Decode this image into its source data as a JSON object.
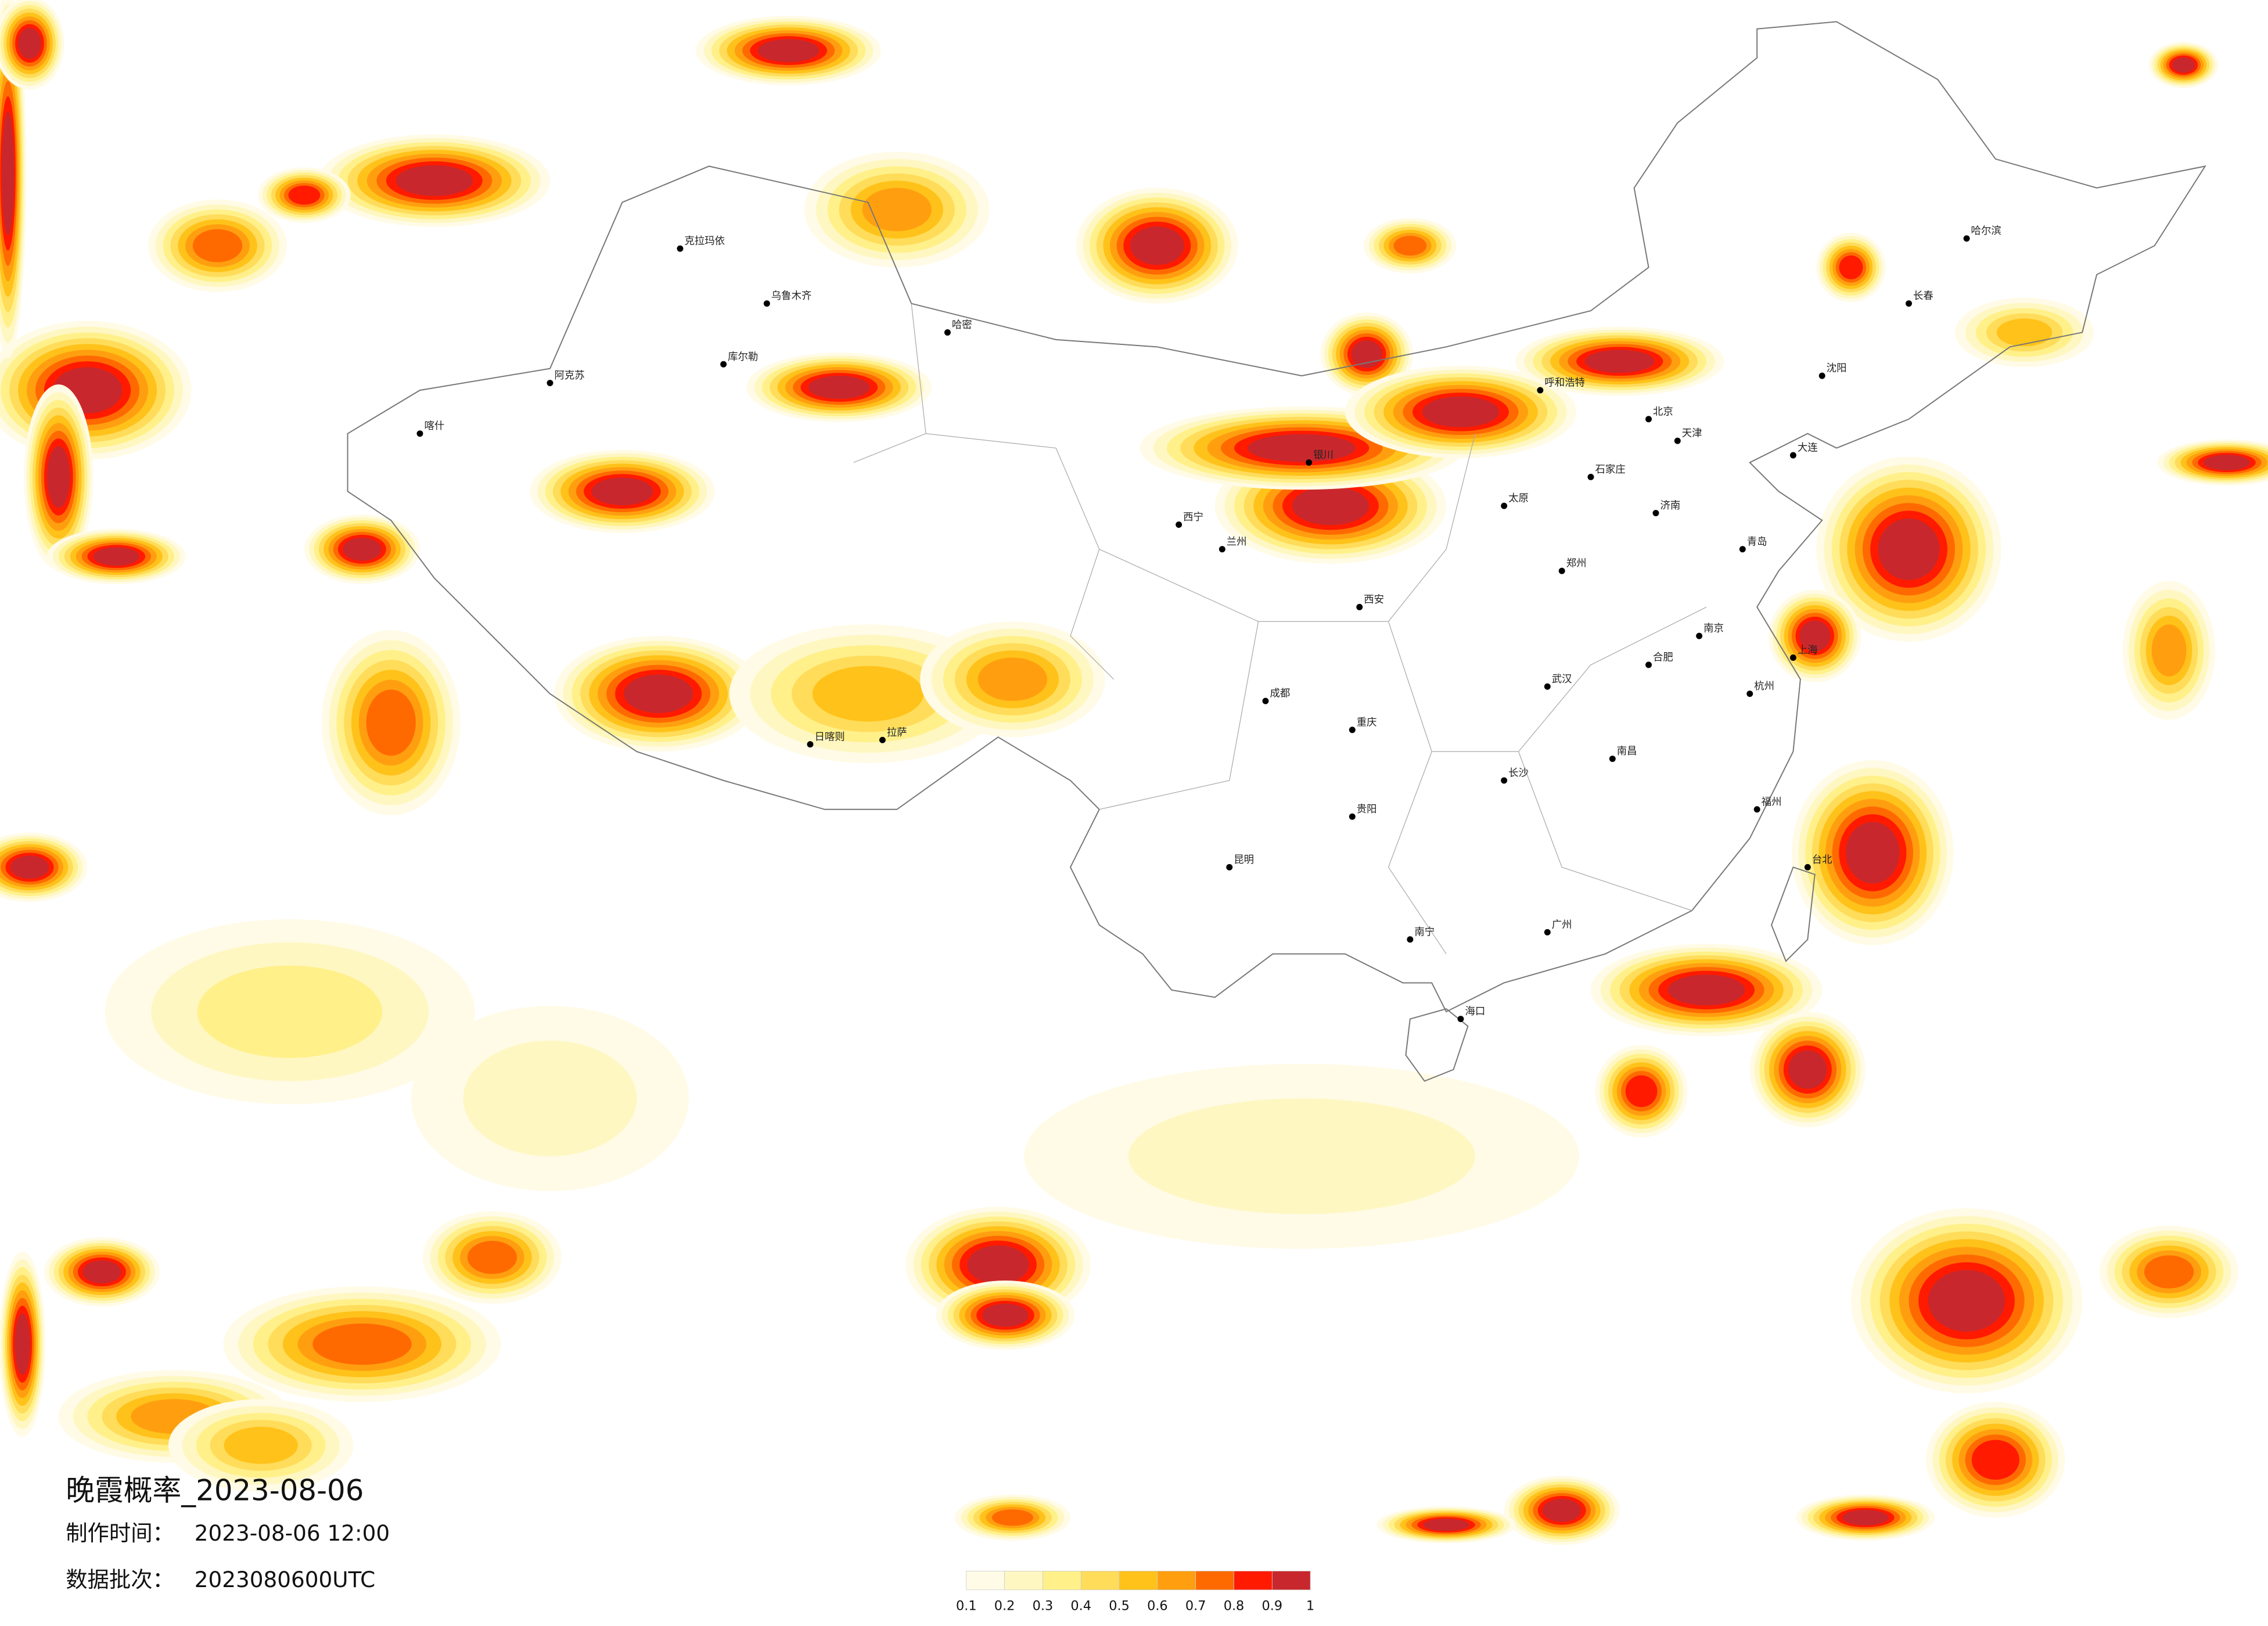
{
  "title": "晚霞概率_2023-08-06",
  "info": [
    {
      "label": "制作时间：",
      "value": "2023-08-06 12:00"
    },
    {
      "label": "数据批次：",
      "value": "2023080600UTC"
    }
  ],
  "legend": {
    "ticks": [
      0.1,
      0.2,
      0.3,
      0.4,
      0.5,
      0.6,
      0.7,
      0.8,
      0.9,
      1
    ],
    "colors": [
      "#fffbe6",
      "#fff7c2",
      "#fff08a",
      "#ffdc5a",
      "#ffc21a",
      "#ff9f10",
      "#ff6a00",
      "#ff1a00",
      "#c8282d"
    ]
  },
  "cities": [
    "克拉玛依",
    "乌鲁木齐",
    "哈密",
    "库尔勒",
    "阿克苏",
    "喀什",
    "拉萨",
    "日喀则",
    "西宁",
    "兰州",
    "银川",
    "呼和浩特",
    "北京",
    "天津",
    "石家庄",
    "太原",
    "西安",
    "成都",
    "重庆",
    "武汉",
    "长沙",
    "南昌",
    "杭州",
    "上海",
    "南京",
    "合肥",
    "福州",
    "广州",
    "南宁",
    "昆明",
    "贵阳",
    "郑州",
    "济南",
    "沈阳",
    "长春",
    "哈尔滨",
    "海口",
    "台北",
    "大连",
    "青岛"
  ]
}
